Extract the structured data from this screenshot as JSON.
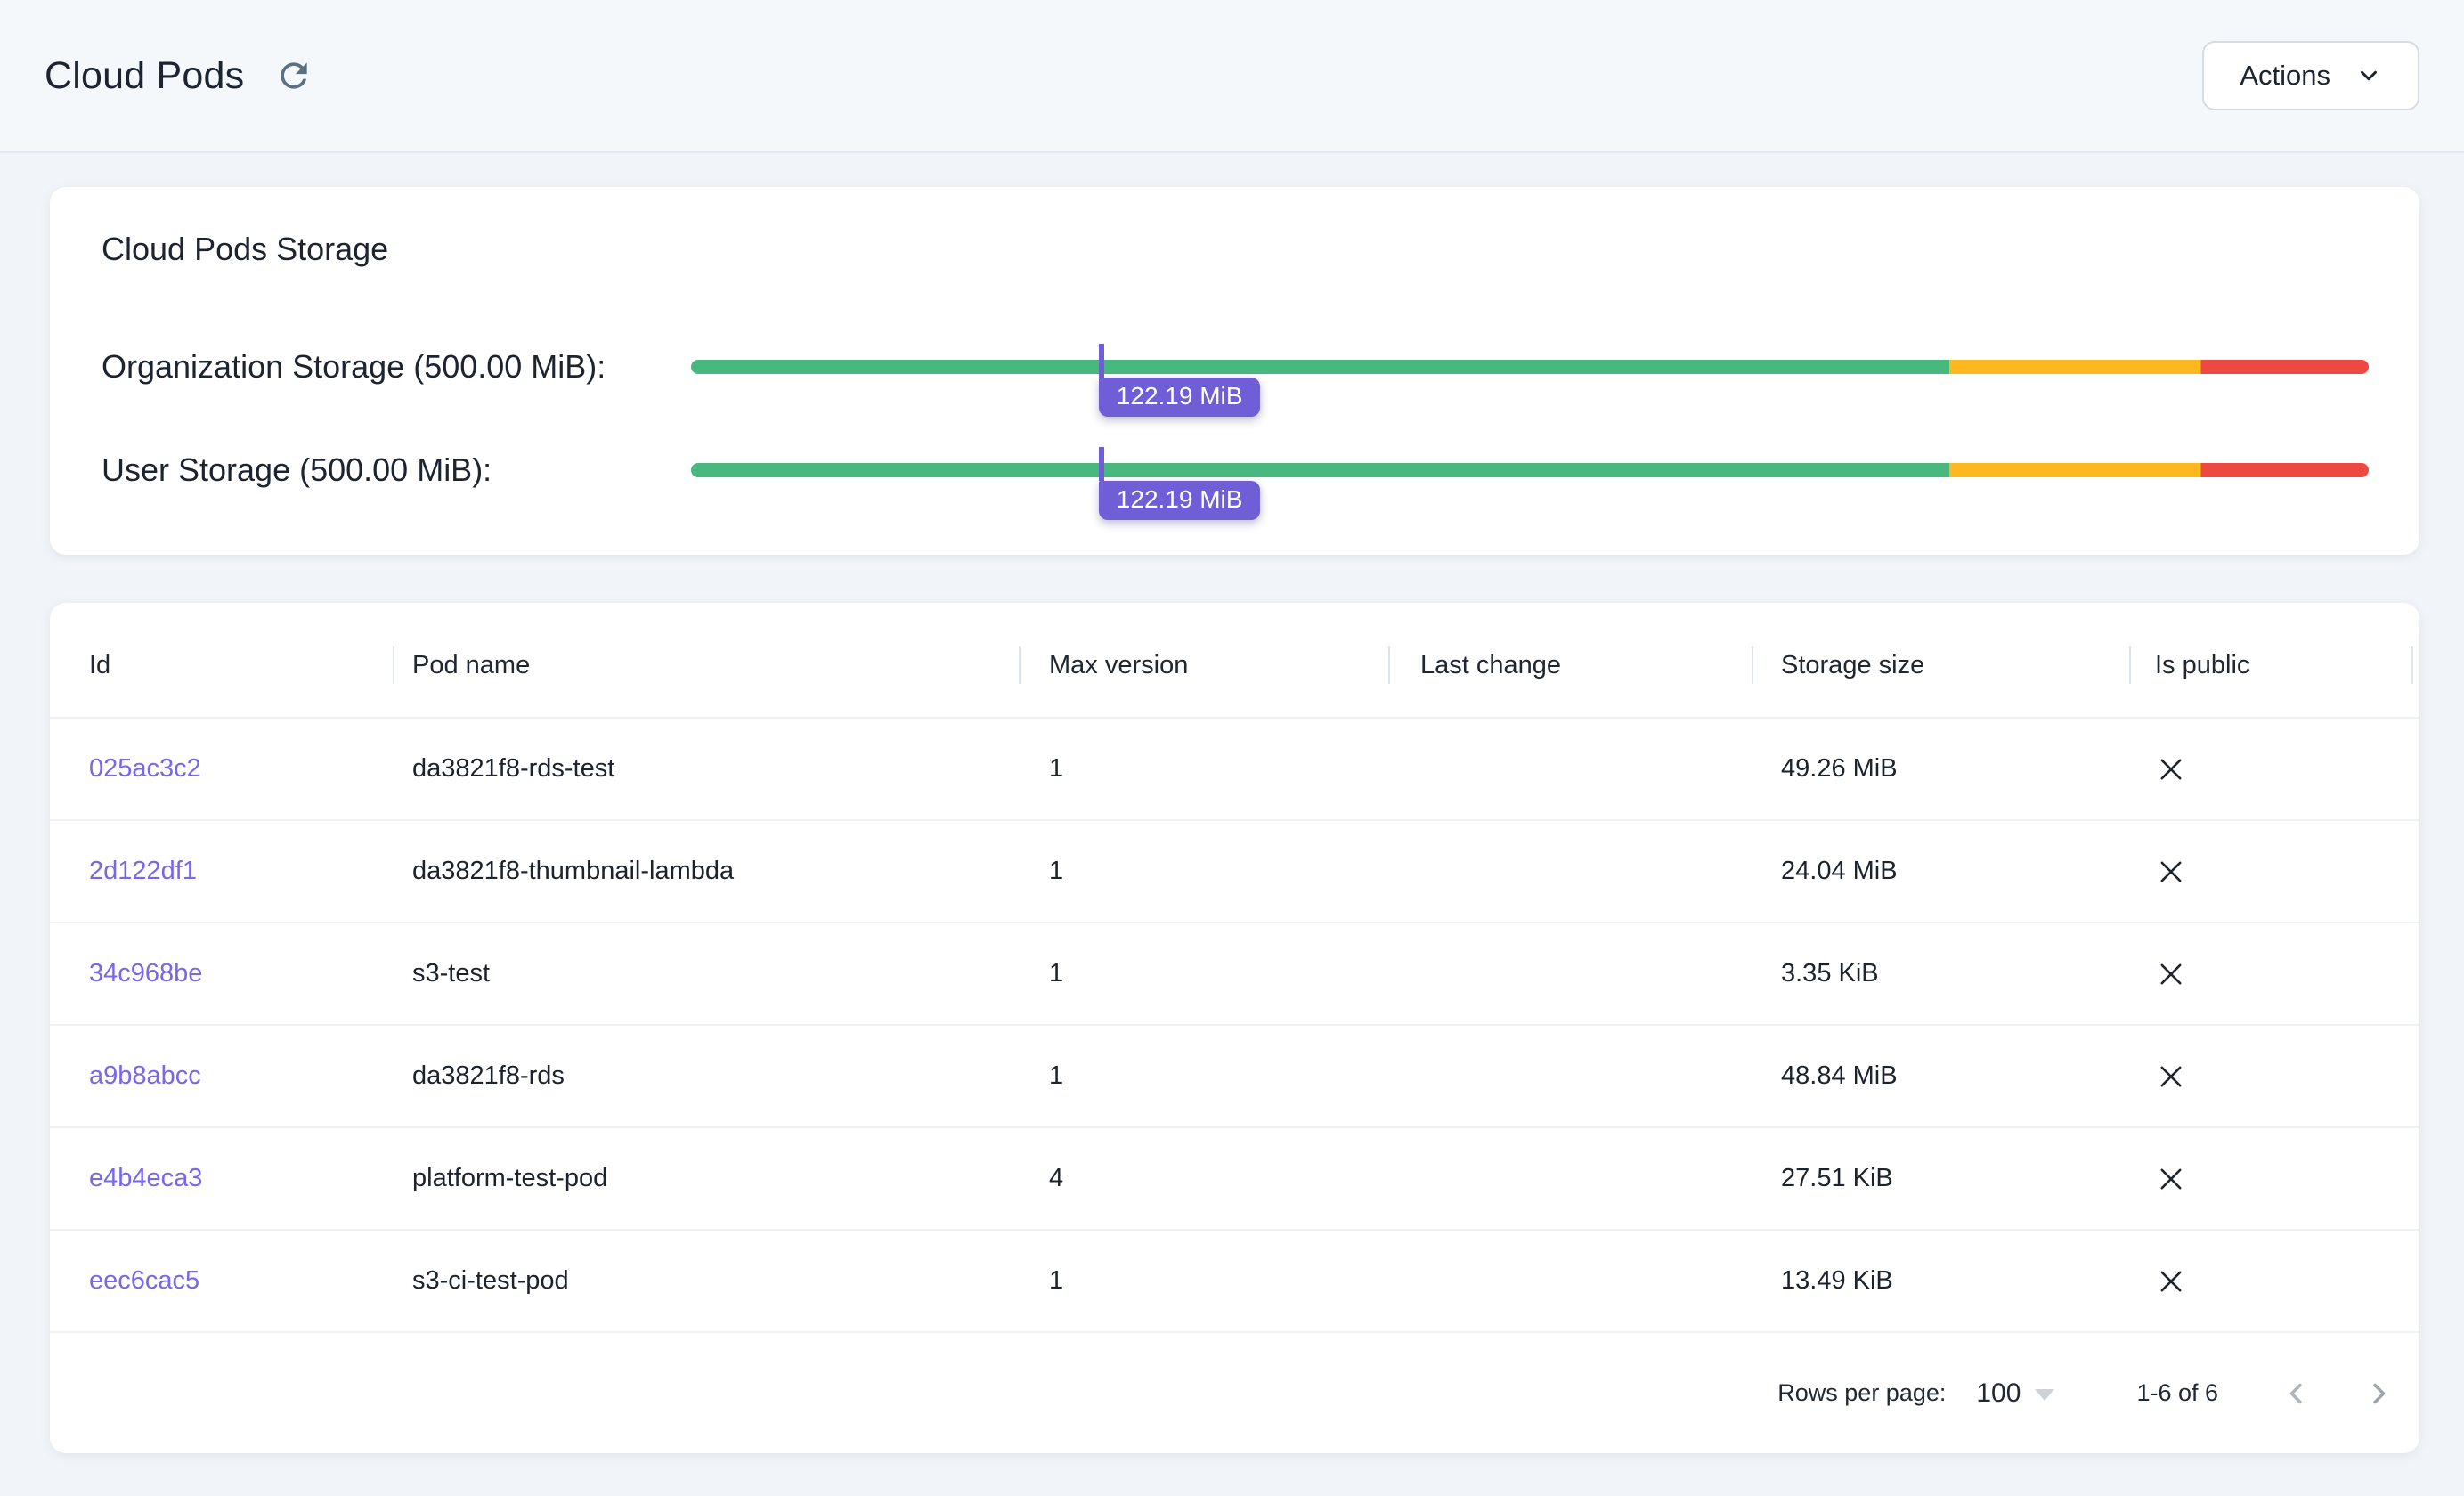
{
  "page": {
    "title": "Cloud Pods"
  },
  "header": {
    "actions_label": "Actions"
  },
  "storage_card": {
    "title": "Cloud Pods Storage",
    "bars": [
      {
        "label": "Organization Storage (500.00 MiB):",
        "value_label": "122.19 MiB",
        "percent": 24.3
      },
      {
        "label": "User Storage (500.00 MiB):",
        "value_label": "122.19 MiB",
        "percent": 24.3
      }
    ],
    "thresholds": {
      "green_pct": 75,
      "yellow_pct": 15,
      "red_pct": 10
    },
    "colors": {
      "green": "#49b87e",
      "yellow": "#fcb81e",
      "red": "#ee4843",
      "marker": "#6f5ed6"
    }
  },
  "table": {
    "columns": [
      "Id",
      "Pod name",
      "Max version",
      "Last change",
      "Storage size",
      "Is public"
    ],
    "rows": [
      {
        "id": "025ac3c2",
        "pod_name": "da3821f8-rds-test",
        "max_version": "1",
        "last_change": "",
        "storage_size": "49.26 MiB",
        "is_public": false
      },
      {
        "id": "2d122df1",
        "pod_name": "da3821f8-thumbnail-lambda",
        "max_version": "1",
        "last_change": "",
        "storage_size": "24.04 MiB",
        "is_public": false
      },
      {
        "id": "34c968be",
        "pod_name": "s3-test",
        "max_version": "1",
        "last_change": "",
        "storage_size": "3.35 KiB",
        "is_public": false
      },
      {
        "id": "a9b8abcc",
        "pod_name": "da3821f8-rds",
        "max_version": "1",
        "last_change": "",
        "storage_size": "48.84 MiB",
        "is_public": false
      },
      {
        "id": "e4b4eca3",
        "pod_name": "platform-test-pod",
        "max_version": "4",
        "last_change": "",
        "storage_size": "27.51 KiB",
        "is_public": false
      },
      {
        "id": "eec6cac5",
        "pod_name": "s3-ci-test-pod",
        "max_version": "1",
        "last_change": "",
        "storage_size": "13.49 KiB",
        "is_public": false
      }
    ],
    "pagination": {
      "rows_per_page_label": "Rows per page:",
      "rows_per_page_value": "100",
      "range_label": "1-6 of 6"
    }
  }
}
